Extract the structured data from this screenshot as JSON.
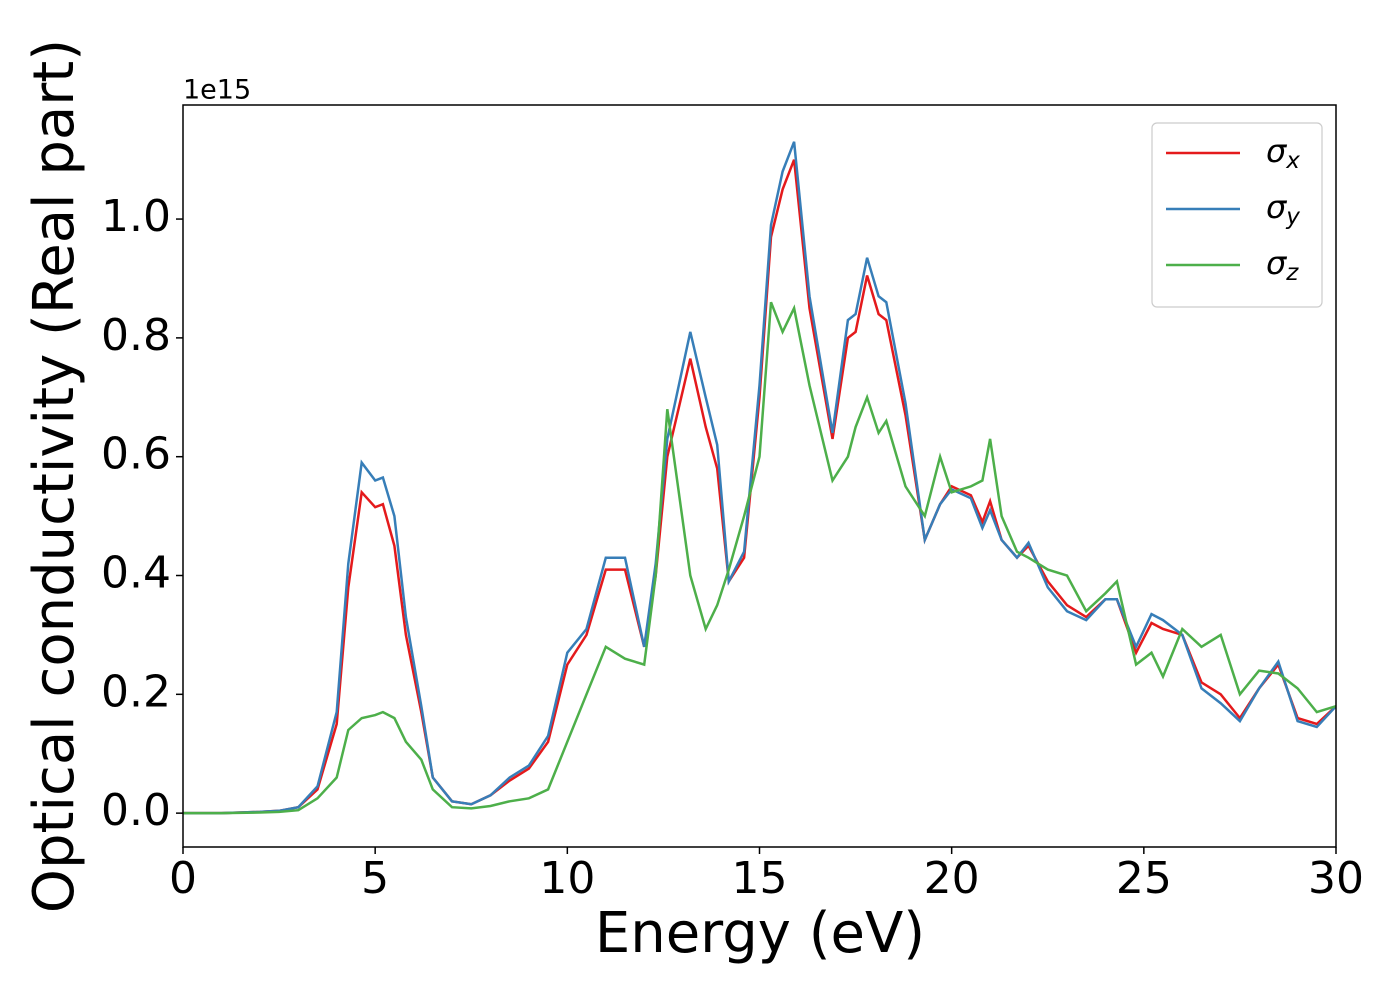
{
  "chart_data": {
    "type": "line",
    "x_label": "Energy (eV)",
    "y_label": "Optical conductivity (Real part)",
    "y_offset_label": "1e15",
    "xlim": [
      0,
      30
    ],
    "ylim": [
      -0.057,
      1.192
    ],
    "xticks": [
      0,
      5,
      10,
      15,
      20,
      25,
      30
    ],
    "yticks": [
      {
        "value": 0,
        "label": "0.0"
      },
      {
        "value": 0.2,
        "label": "0.2"
      },
      {
        "value": 0.4,
        "label": "0.4"
      },
      {
        "value": 0.6,
        "label": "0.6"
      },
      {
        "value": 0.8,
        "label": "0.8"
      },
      {
        "value": 1.0,
        "label": "1.0"
      }
    ],
    "legend": "upper right",
    "x": [
      0,
      1,
      2,
      2.5,
      3,
      3.5,
      4,
      4.3,
      4.65,
      5,
      5.2,
      5.5,
      5.8,
      6.2,
      6.5,
      7,
      7.5,
      8,
      8.5,
      9,
      9.5,
      10,
      10.5,
      11,
      11.5,
      12,
      12.3,
      12.6,
      13.2,
      13.6,
      13.9,
      14.2,
      14.6,
      15,
      15.3,
      15.6,
      15.9,
      16.3,
      16.9,
      17.3,
      17.5,
      17.8,
      18.1,
      18.3,
      18.8,
      19.3,
      19.7,
      20,
      20.5,
      20.8,
      21,
      21.3,
      21.7,
      22,
      22.5,
      23,
      23.5,
      24,
      24.3,
      24.8,
      25.2,
      25.5,
      26,
      26.5,
      27,
      27.5,
      28,
      28.5,
      29,
      29.5,
      30
    ],
    "series": [
      {
        "name": "σx",
        "color": "#e41a1c",
        "values": [
          0,
          0,
          0.002,
          0.004,
          0.01,
          0.04,
          0.15,
          0.38,
          0.54,
          0.515,
          0.52,
          0.45,
          0.3,
          0.17,
          0.06,
          0.02,
          0.015,
          0.03,
          0.055,
          0.075,
          0.12,
          0.25,
          0.3,
          0.41,
          0.41,
          0.28,
          0.4,
          0.6,
          0.765,
          0.65,
          0.58,
          0.39,
          0.43,
          0.7,
          0.97,
          1.05,
          1.1,
          0.85,
          0.63,
          0.8,
          0.81,
          0.905,
          0.84,
          0.83,
          0.67,
          0.46,
          0.52,
          0.55,
          0.535,
          0.49,
          0.525,
          0.46,
          0.43,
          0.45,
          0.39,
          0.35,
          0.33,
          0.36,
          0.36,
          0.27,
          0.32,
          0.31,
          0.3,
          0.22,
          0.2,
          0.16,
          0.21,
          0.25,
          0.16,
          0.15,
          0.18
        ]
      },
      {
        "name": "σy",
        "color": "#377eb8",
        "values": [
          0,
          0,
          0.002,
          0.004,
          0.01,
          0.045,
          0.17,
          0.42,
          0.59,
          0.56,
          0.565,
          0.5,
          0.33,
          0.18,
          0.06,
          0.02,
          0.015,
          0.03,
          0.06,
          0.08,
          0.13,
          0.27,
          0.31,
          0.43,
          0.43,
          0.28,
          0.42,
          0.63,
          0.81,
          0.7,
          0.62,
          0.39,
          0.44,
          0.72,
          0.99,
          1.08,
          1.13,
          0.87,
          0.64,
          0.83,
          0.84,
          0.935,
          0.87,
          0.86,
          0.69,
          0.46,
          0.52,
          0.545,
          0.53,
          0.48,
          0.51,
          0.46,
          0.43,
          0.455,
          0.38,
          0.34,
          0.325,
          0.36,
          0.36,
          0.28,
          0.335,
          0.325,
          0.3,
          0.21,
          0.185,
          0.155,
          0.21,
          0.255,
          0.155,
          0.145,
          0.18
        ]
      },
      {
        "name": "σz",
        "color": "#4daf4a",
        "values": [
          0,
          0,
          0.001,
          0.002,
          0.005,
          0.025,
          0.06,
          0.14,
          0.16,
          0.165,
          0.17,
          0.16,
          0.12,
          0.09,
          0.04,
          0.01,
          0.008,
          0.012,
          0.02,
          0.025,
          0.04,
          0.12,
          0.2,
          0.28,
          0.26,
          0.25,
          0.4,
          0.68,
          0.4,
          0.31,
          0.35,
          0.41,
          0.5,
          0.6,
          0.86,
          0.81,
          0.85,
          0.72,
          0.56,
          0.6,
          0.65,
          0.7,
          0.64,
          0.66,
          0.55,
          0.5,
          0.6,
          0.54,
          0.55,
          0.56,
          0.63,
          0.5,
          0.44,
          0.43,
          0.41,
          0.4,
          0.34,
          0.37,
          0.39,
          0.25,
          0.27,
          0.23,
          0.31,
          0.28,
          0.3,
          0.2,
          0.24,
          0.235,
          0.21,
          0.17,
          0.18
        ]
      }
    ]
  }
}
